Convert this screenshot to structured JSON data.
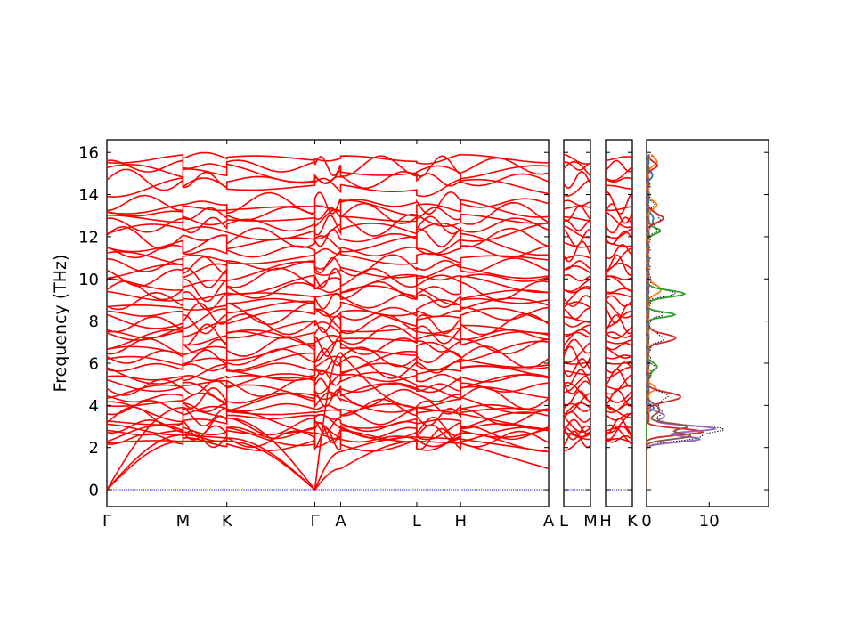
{
  "chart_data": {
    "type": "line",
    "title": "",
    "ylabel": "Frequency (THz)",
    "ylim": [
      -0.8,
      16.6
    ],
    "yticks": [
      0,
      2,
      4,
      6,
      8,
      10,
      12,
      14,
      16
    ],
    "line_color": "#ff0000",
    "zero_line_color": "#0000cc",
    "panels": [
      {
        "segments": [
          {
            "labels": [
              "Γ",
              "M"
            ],
            "length": 0.577
          },
          {
            "labels": [
              "M",
              "K"
            ],
            "length": 0.333
          },
          {
            "labels": [
              "K",
              "Γ"
            ],
            "length": 0.667
          },
          {
            "labels": [
              "Γ",
              "A"
            ],
            "length": 0.196
          },
          {
            "labels": [
              "A",
              "L"
            ],
            "length": 0.577
          },
          {
            "labels": [
              "L",
              "H"
            ],
            "length": 0.333
          },
          {
            "labels": [
              "H",
              "A"
            ],
            "length": 0.667
          }
        ],
        "tick_labels": [
          "Γ",
          "M",
          "K",
          "Γ",
          "A",
          "L",
          "H",
          "A"
        ]
      },
      {
        "segments": [
          {
            "labels": [
              "L",
              "M"
            ],
            "length": 0.196
          }
        ],
        "tick_labels": [
          "L",
          "M"
        ]
      },
      {
        "segments": [
          {
            "labels": [
              "H",
              "K"
            ],
            "length": 0.196
          }
        ],
        "tick_labels": [
          "H",
          "K"
        ]
      }
    ],
    "acoustic_gamma": {
      "TA1_max": 2.3,
      "TA2_max": 2.6,
      "LA_max": 3.9,
      "A_point": [
        1.0,
        1.8
      ]
    },
    "optical_levels_thz": [
      2.25,
      2.4,
      2.55,
      2.7,
      2.85,
      3.0,
      3.2,
      3.45,
      3.7,
      3.9,
      4.1,
      4.35,
      4.6,
      4.85,
      5.05,
      5.3,
      5.55,
      5.8,
      6.05,
      6.3,
      6.55,
      6.8,
      7.1,
      7.35,
      7.6,
      7.85,
      8.1,
      8.35,
      8.65,
      8.95,
      9.2,
      9.45,
      9.75,
      10.05,
      10.35,
      10.65,
      10.95,
      11.3,
      11.65,
      11.95,
      12.25,
      12.55,
      12.85,
      13.1,
      13.35,
      13.6,
      14.35,
      14.7,
      15.05,
      15.35,
      15.7
    ],
    "dos": {
      "xlim": [
        0,
        19.5
      ],
      "xticks": [
        0,
        10
      ],
      "series": [
        {
          "color": "#8b6914",
          "role": "total",
          "style": "dotted"
        },
        {
          "color": "#1f77b4",
          "peaks": [
            [
              3.9,
              0.8,
              0.12
            ],
            [
              12.8,
              1.0,
              0.2
            ],
            [
              14.9,
              0.6,
              0.2
            ]
          ]
        },
        {
          "color": "#ff7f0e",
          "peaks": [
            [
              4.8,
              1.2,
              0.15
            ],
            [
              9.5,
              2.2,
              0.2
            ],
            [
              13.5,
              1.3,
              0.2
            ],
            [
              15.6,
              1.5,
              0.2
            ]
          ]
        },
        {
          "color": "#2ca02c",
          "peaks": [
            [
              5.8,
              1.4,
              0.2
            ],
            [
              8.3,
              4.2,
              0.12
            ],
            [
              9.3,
              6.0,
              0.15
            ],
            [
              12.3,
              2.0,
              0.15
            ]
          ]
        },
        {
          "color": "#d62728",
          "peaks": [
            [
              2.75,
              9.0,
              0.15
            ],
            [
              4.4,
              5.4,
              0.2
            ],
            [
              7.2,
              4.3,
              0.2
            ],
            [
              12.9,
              2.5,
              0.2
            ],
            [
              15.4,
              1.6,
              0.15
            ]
          ]
        },
        {
          "color": "#9467bd",
          "peaks": [
            [
              2.4,
              8.5,
              0.14
            ],
            [
              2.9,
              11.0,
              0.14
            ],
            [
              3.5,
              2.5,
              0.2
            ]
          ]
        },
        {
          "color": "#8c564b",
          "peaks": [
            [
              2.55,
              7.0,
              0.15
            ],
            [
              3.0,
              6.5,
              0.15
            ],
            [
              3.8,
              2.0,
              0.2
            ]
          ]
        }
      ]
    }
  }
}
